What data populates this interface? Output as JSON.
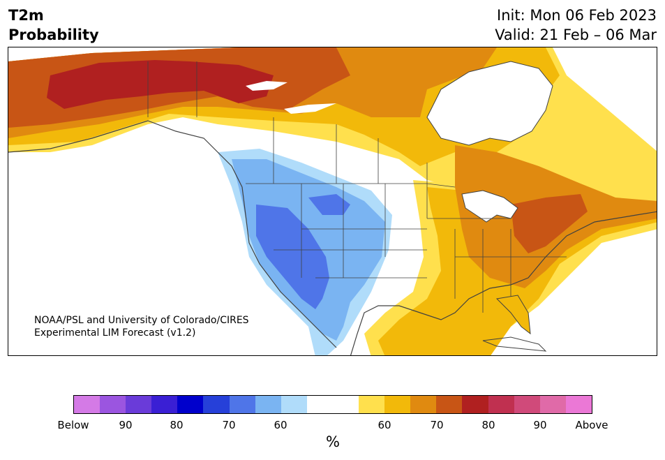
{
  "title": {
    "variable": "T2m",
    "quantity": "Probability",
    "init": "Init: Mon 06 Feb 2023",
    "valid": "Valid: 21 Feb – 06 Mar"
  },
  "credit": {
    "line1": "NOAA/PSL and University of Colorado/CIRES",
    "line2": "Experimental LIM Forecast (v1.2)"
  },
  "colorbar": {
    "colors": [
      "#d47ae6",
      "#9b55e0",
      "#6a3bd9",
      "#3a1fd4",
      "#0000cc",
      "#2640d9",
      "#4f75e8",
      "#7ab4f2",
      "#b0dcfa",
      "#ffffff",
      "#ffffff",
      "#ffe04d",
      "#f2b90a",
      "#e08a10",
      "#c85515",
      "#b02020",
      "#c03050",
      "#d04a7a",
      "#e06aa8",
      "#eb78d6"
    ],
    "labels": [
      "Below",
      "90",
      "80",
      "70",
      "60",
      "60",
      "70",
      "80",
      "90",
      "Above"
    ],
    "unit": "%"
  },
  "map_legend_colors": {
    "below_60": "#b0dcfa",
    "below_70": "#7ab4f2",
    "below_80": "#4f75e8",
    "above_60": "#ffe04d",
    "above_70": "#f2b90a",
    "above_80": "#e08a10",
    "above_90": "#c85515",
    "above_95": "#b02020",
    "boundary": "#404040"
  }
}
